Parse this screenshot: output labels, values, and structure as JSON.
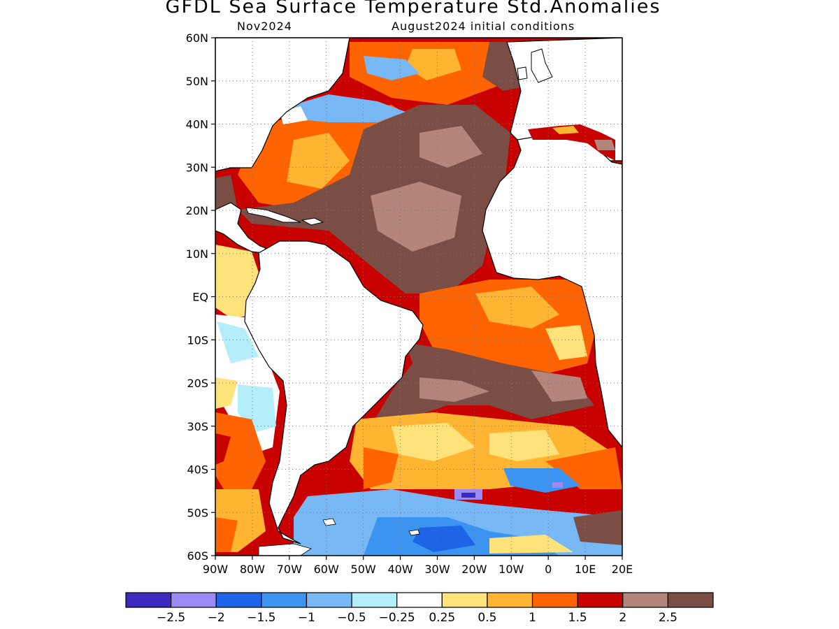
{
  "title": "GFDL Sea Surface Temperature Std.Anomalies",
  "subtitle_left": "Nov2024",
  "subtitle_right": "August2024 initial conditions",
  "map": {
    "lon_range": [
      -90,
      20
    ],
    "lat_range": [
      -60,
      60
    ],
    "lat_ticks": [
      {
        "value": 60,
        "label": "60N"
      },
      {
        "value": 50,
        "label": "50N"
      },
      {
        "value": 40,
        "label": "40N"
      },
      {
        "value": 30,
        "label": "30N"
      },
      {
        "value": 20,
        "label": "20N"
      },
      {
        "value": 10,
        "label": "10N"
      },
      {
        "value": 0,
        "label": "EQ"
      },
      {
        "value": -10,
        "label": "10S"
      },
      {
        "value": -20,
        "label": "20S"
      },
      {
        "value": -30,
        "label": "30S"
      },
      {
        "value": -40,
        "label": "40S"
      },
      {
        "value": -50,
        "label": "50S"
      },
      {
        "value": -60,
        "label": "60S"
      }
    ],
    "lon_ticks": [
      {
        "value": -90,
        "label": "90W"
      },
      {
        "value": -80,
        "label": "80W"
      },
      {
        "value": -70,
        "label": "70W"
      },
      {
        "value": -60,
        "label": "60W"
      },
      {
        "value": -50,
        "label": "50W"
      },
      {
        "value": -40,
        "label": "40W"
      },
      {
        "value": -30,
        "label": "30W"
      },
      {
        "value": -20,
        "label": "20W"
      },
      {
        "value": -10,
        "label": "10W"
      },
      {
        "value": 0,
        "label": "0"
      },
      {
        "value": 10,
        "label": "10E"
      },
      {
        "value": 20,
        "label": "20E"
      }
    ],
    "gridlines": "dotted"
  },
  "colorbar": {
    "colors": [
      "#3c29c0",
      "#9b8af5",
      "#1e64e6",
      "#3c94f0",
      "#78b8f5",
      "#b4eefa",
      "#ffffff",
      "#ffe27a",
      "#ffb432",
      "#ff6400",
      "#c80000",
      "#b4857a",
      "#7a4e44"
    ],
    "labels": [
      "−2.5",
      "−2",
      "−1.5",
      "−1",
      "−0.5",
      "−0.25",
      "0.25",
      "0.5",
      "1",
      "1.5",
      "2",
      "2.5"
    ]
  }
}
